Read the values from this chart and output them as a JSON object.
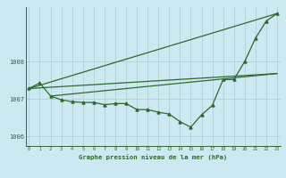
{
  "xlabel": "Graphe pression niveau de la mer (hPa)",
  "background_color": "#cce8f0",
  "grid_color": "#b0d0dc",
  "line_color": "#2d6a2d",
  "ylim": [
    1005.75,
    1009.45
  ],
  "yticks": [
    1006,
    1007,
    1008
  ],
  "xlim": [
    -0.3,
    23.3
  ],
  "xticks": [
    0,
    1,
    2,
    3,
    4,
    5,
    6,
    7,
    8,
    9,
    10,
    11,
    12,
    13,
    14,
    15,
    16,
    17,
    18,
    19,
    20,
    21,
    22,
    23
  ],
  "series_x": [
    0,
    1,
    2,
    3,
    4,
    5,
    6,
    7,
    8,
    9,
    10,
    11,
    12,
    13,
    14,
    15,
    16,
    17,
    18,
    19,
    20,
    21,
    22,
    23
  ],
  "series_y": [
    1007.28,
    1007.43,
    1007.08,
    1006.98,
    1006.93,
    1006.91,
    1006.91,
    1006.85,
    1006.88,
    1006.88,
    1006.72,
    1006.72,
    1006.65,
    1006.6,
    1006.4,
    1006.25,
    1006.58,
    1006.83,
    1007.52,
    1007.52,
    1008.0,
    1008.62,
    1009.08,
    1009.28
  ],
  "line1_x": [
    0,
    23
  ],
  "line1_y": [
    1007.28,
    1009.28
  ],
  "line2_x": [
    0,
    23
  ],
  "line2_y": [
    1007.28,
    1007.68
  ],
  "line3_x": [
    2,
    23
  ],
  "line3_y": [
    1007.08,
    1007.68
  ]
}
